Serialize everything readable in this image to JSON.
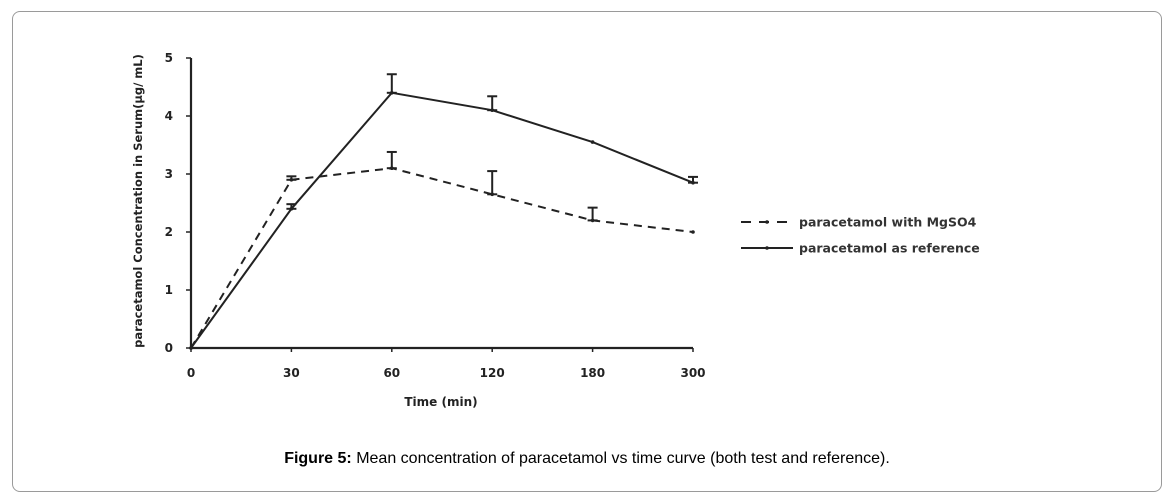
{
  "chart_data": {
    "type": "line",
    "title": "",
    "xlabel": "Time (min)",
    "ylabel": "paracetamol Concentration in Serum(µg/ mL)",
    "categories": [
      "0",
      "30",
      "60",
      "120",
      "180",
      "300"
    ],
    "x_axis_type": "categorical",
    "ylim": [
      0,
      5
    ],
    "yticks": [
      "0",
      "1",
      "2",
      "3",
      "4",
      "5"
    ],
    "grid": false,
    "legend_position": "right",
    "series": [
      {
        "name": "paracetamol with MgSO4",
        "style": "dashed",
        "color": "#222222",
        "values": [
          0,
          2.9,
          3.1,
          2.65,
          2.2,
          2.0
        ],
        "error_upper": [
          0,
          0.06,
          0.28,
          0.4,
          0.22,
          0
        ]
      },
      {
        "name": "paracetamol as reference",
        "style": "solid",
        "color": "#222222",
        "values": [
          0,
          2.4,
          4.4,
          4.1,
          3.55,
          2.85
        ],
        "error_upper": [
          0,
          0.08,
          0.32,
          0.24,
          0,
          0.1
        ]
      }
    ]
  },
  "caption": {
    "label": "Figure 5:",
    "text": " Mean concentration of paracetamol vs time curve (both test and reference)."
  }
}
